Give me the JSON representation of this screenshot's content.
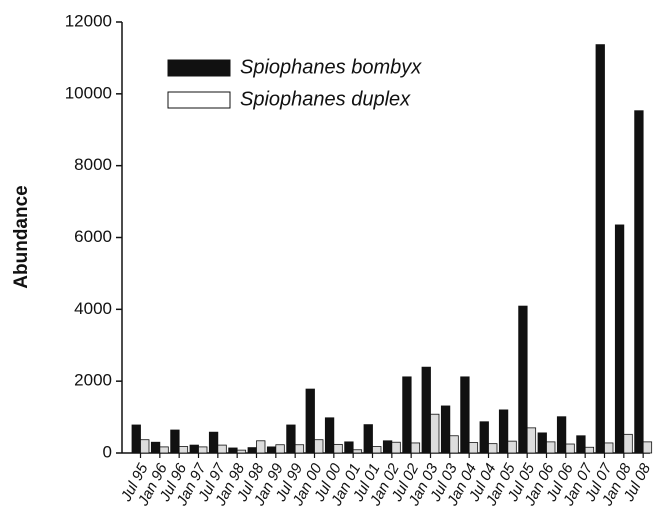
{
  "chart_data": {
    "type": "bar",
    "y_label": "Abundance",
    "categories": [
      "Jul 95",
      "Jan 96",
      "Jul 96",
      "Jan 97",
      "Jul 97",
      "Jan 98",
      "Jul 98",
      "Jan 99",
      "Jul 99",
      "Jan 00",
      "Jul 00",
      "Jan 01",
      "Jul 01",
      "Jan 02",
      "Jul 02",
      "Jan 03",
      "Jul 03",
      "Jan 04",
      "Jul 04",
      "Jan 05",
      "Jul 05",
      "Jan 06",
      "Jul 06",
      "Jan 07",
      "Jul 07",
      "Jan 08",
      "Jul 08"
    ],
    "series": [
      {
        "name": "Spiophanes bombyx",
        "color": "#111111",
        "values": [
          780,
          300,
          640,
          220,
          580,
          140,
          150,
          170,
          780,
          1780,
          980,
          310,
          790,
          340,
          2120,
          2390,
          1310,
          2120,
          870,
          1200,
          4090,
          560,
          1010,
          480,
          11370,
          6350,
          9530
        ]
      },
      {
        "name": "Spiophanes duplex",
        "color": "#dddddd",
        "values": [
          370,
          170,
          180,
          170,
          220,
          80,
          340,
          230,
          230,
          370,
          240,
          90,
          180,
          300,
          280,
          1080,
          480,
          290,
          260,
          330,
          700,
          310,
          250,
          160,
          280,
          520,
          310
        ]
      }
    ],
    "ylim": [
      0,
      12000
    ],
    "yticks": [
      0,
      2000,
      4000,
      6000,
      8000,
      10000,
      12000
    ]
  }
}
